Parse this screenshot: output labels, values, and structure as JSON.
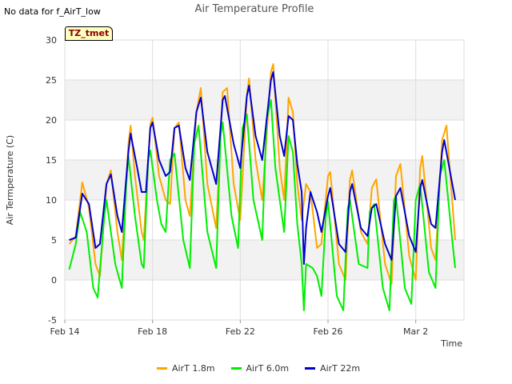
{
  "status_message": "No data for f_AirT_low",
  "badge_label": "TZ_tmet",
  "chart_data": {
    "type": "line",
    "title": "Air Temperature Profile",
    "xlabel": "Time",
    "ylabel": "Air Termperature (C)",
    "ylim": [
      -5,
      30
    ],
    "y_ticks": [
      -5,
      0,
      5,
      10,
      15,
      20,
      25,
      30
    ],
    "x_range_days": [
      0,
      18.2
    ],
    "x_ticks": [
      {
        "day": 0,
        "label": "Feb 14"
      },
      {
        "day": 4,
        "label": "Feb 18"
      },
      {
        "day": 8,
        "label": "Feb 22"
      },
      {
        "day": 12,
        "label": "Feb 26"
      },
      {
        "day": 16,
        "label": "Mar 2"
      }
    ],
    "grid": true,
    "legend_position": "bottom",
    "series": [
      {
        "name": "AirT 1.8m",
        "color": "#ffa500",
        "points": [
          [
            0.2,
            4.5
          ],
          [
            0.5,
            5.5
          ],
          [
            0.8,
            12.2
          ],
          [
            1.1,
            9.0
          ],
          [
            1.4,
            2.0
          ],
          [
            1.6,
            0.5
          ],
          [
            1.9,
            12.0
          ],
          [
            2.1,
            13.7
          ],
          [
            2.4,
            6.0
          ],
          [
            2.6,
            2.5
          ],
          [
            2.9,
            17.0
          ],
          [
            3.0,
            19.3
          ],
          [
            3.2,
            13.0
          ],
          [
            3.5,
            6.0
          ],
          [
            3.6,
            5.0
          ],
          [
            3.9,
            19.5
          ],
          [
            4.0,
            20.3
          ],
          [
            4.3,
            13.0
          ],
          [
            4.6,
            10.0
          ],
          [
            4.8,
            9.5
          ],
          [
            5.0,
            19.0
          ],
          [
            5.2,
            19.7
          ],
          [
            5.5,
            10.0
          ],
          [
            5.7,
            8.0
          ],
          [
            6.0,
            21.0
          ],
          [
            6.2,
            24.0
          ],
          [
            6.5,
            12.0
          ],
          [
            6.9,
            6.5
          ],
          [
            7.2,
            23.5
          ],
          [
            7.4,
            24.0
          ],
          [
            7.7,
            12.0
          ],
          [
            8.0,
            7.5
          ],
          [
            8.3,
            23.0
          ],
          [
            8.4,
            25.2
          ],
          [
            8.7,
            15.0
          ],
          [
            9.0,
            10.0
          ],
          [
            9.4,
            26.0
          ],
          [
            9.5,
            27.0
          ],
          [
            9.8,
            14.0
          ],
          [
            10.0,
            10.0
          ],
          [
            10.2,
            22.8
          ],
          [
            10.4,
            21.0
          ],
          [
            10.6,
            12.0
          ],
          [
            10.8,
            7.5
          ],
          [
            11.0,
            12.0
          ],
          [
            11.2,
            11.0
          ],
          [
            11.5,
            4.0
          ],
          [
            11.7,
            4.5
          ],
          [
            12.0,
            13.0
          ],
          [
            12.1,
            13.5
          ],
          [
            12.5,
            2.0
          ],
          [
            12.8,
            0.0
          ],
          [
            13.0,
            12.5
          ],
          [
            13.1,
            13.7
          ],
          [
            13.5,
            6.0
          ],
          [
            13.8,
            4.5
          ],
          [
            14.0,
            11.5
          ],
          [
            14.2,
            12.6
          ],
          [
            14.6,
            2.0
          ],
          [
            14.9,
            -0.5
          ],
          [
            15.1,
            13.0
          ],
          [
            15.3,
            14.5
          ],
          [
            15.7,
            3.0
          ],
          [
            16.0,
            0.0
          ],
          [
            16.2,
            14.0
          ],
          [
            16.3,
            15.5
          ],
          [
            16.7,
            4.0
          ],
          [
            16.9,
            2.5
          ],
          [
            17.2,
            17.5
          ],
          [
            17.4,
            19.3
          ],
          [
            17.8,
            5.0
          ]
        ]
      },
      {
        "name": "AirT 6.0m",
        "color": "#00ee00",
        "points": [
          [
            0.2,
            1.3
          ],
          [
            0.5,
            4.5
          ],
          [
            0.7,
            8.5
          ],
          [
            1.0,
            6.0
          ],
          [
            1.3,
            -1.0
          ],
          [
            1.5,
            -2.2
          ],
          [
            1.8,
            8.0
          ],
          [
            1.9,
            10.0
          ],
          [
            2.3,
            2.0
          ],
          [
            2.6,
            -1.0
          ],
          [
            2.8,
            12.0
          ],
          [
            2.9,
            15.5
          ],
          [
            3.2,
            8.0
          ],
          [
            3.5,
            2.0
          ],
          [
            3.6,
            1.5
          ],
          [
            3.8,
            15.0
          ],
          [
            3.9,
            16.2
          ],
          [
            4.2,
            10.0
          ],
          [
            4.4,
            7.0
          ],
          [
            4.6,
            6.0
          ],
          [
            4.8,
            15.0
          ],
          [
            5.0,
            15.8
          ],
          [
            5.4,
            5.0
          ],
          [
            5.7,
            1.5
          ],
          [
            5.9,
            17.0
          ],
          [
            6.1,
            19.3
          ],
          [
            6.5,
            6.0
          ],
          [
            6.9,
            1.5
          ],
          [
            7.1,
            18.0
          ],
          [
            7.2,
            19.7
          ],
          [
            7.6,
            8.0
          ],
          [
            7.9,
            4.0
          ],
          [
            8.1,
            19.0
          ],
          [
            8.3,
            20.7
          ],
          [
            8.6,
            10.0
          ],
          [
            9.0,
            5.0
          ],
          [
            9.2,
            20.0
          ],
          [
            9.4,
            22.5
          ],
          [
            9.6,
            14.0
          ],
          [
            10.0,
            6.0
          ],
          [
            10.2,
            18.0
          ],
          [
            10.4,
            16.0
          ],
          [
            10.6,
            7.0
          ],
          [
            10.8,
            2.0
          ],
          [
            10.9,
            -3.8
          ],
          [
            11.0,
            2.0
          ],
          [
            11.3,
            1.5
          ],
          [
            11.5,
            0.5
          ],
          [
            11.7,
            -2.0
          ],
          [
            11.9,
            8.0
          ],
          [
            12.0,
            9.8
          ],
          [
            12.4,
            -2.0
          ],
          [
            12.7,
            -3.8
          ],
          [
            12.9,
            9.0
          ],
          [
            13.0,
            10.0
          ],
          [
            13.4,
            2.0
          ],
          [
            13.8,
            1.5
          ],
          [
            13.9,
            8.5
          ],
          [
            14.1,
            9.5
          ],
          [
            14.5,
            -1.0
          ],
          [
            14.8,
            -3.8
          ],
          [
            15.0,
            10.0
          ],
          [
            15.1,
            10.5
          ],
          [
            15.5,
            -1.0
          ],
          [
            15.8,
            -3.0
          ],
          [
            16.0,
            10.0
          ],
          [
            16.2,
            12.0
          ],
          [
            16.6,
            1.0
          ],
          [
            16.9,
            -1.0
          ],
          [
            17.1,
            13.0
          ],
          [
            17.3,
            15.0
          ],
          [
            17.7,
            4.0
          ],
          [
            17.8,
            1.5
          ]
        ]
      },
      {
        "name": "AirT 22m",
        "color": "#0000cc",
        "points": [
          [
            0.2,
            5.0
          ],
          [
            0.5,
            5.3
          ],
          [
            0.8,
            10.8
          ],
          [
            1.1,
            9.5
          ],
          [
            1.4,
            4.0
          ],
          [
            1.6,
            4.5
          ],
          [
            1.9,
            12.0
          ],
          [
            2.1,
            13.2
          ],
          [
            2.4,
            8.0
          ],
          [
            2.6,
            6.0
          ],
          [
            2.9,
            16.0
          ],
          [
            3.0,
            18.3
          ],
          [
            3.3,
            14.0
          ],
          [
            3.5,
            11.0
          ],
          [
            3.7,
            11.0
          ],
          [
            3.9,
            19.0
          ],
          [
            4.0,
            19.7
          ],
          [
            4.3,
            15.0
          ],
          [
            4.6,
            13.0
          ],
          [
            4.8,
            13.5
          ],
          [
            5.0,
            19.0
          ],
          [
            5.2,
            19.3
          ],
          [
            5.5,
            14.0
          ],
          [
            5.7,
            12.5
          ],
          [
            6.0,
            21.0
          ],
          [
            6.2,
            22.8
          ],
          [
            6.5,
            16.0
          ],
          [
            6.9,
            12.0
          ],
          [
            7.2,
            22.5
          ],
          [
            7.3,
            23.0
          ],
          [
            7.7,
            17.0
          ],
          [
            8.0,
            14.0
          ],
          [
            8.3,
            23.0
          ],
          [
            8.4,
            24.3
          ],
          [
            8.7,
            18.0
          ],
          [
            9.0,
            15.0
          ],
          [
            9.4,
            25.0
          ],
          [
            9.5,
            26.0
          ],
          [
            9.8,
            18.0
          ],
          [
            10.0,
            15.5
          ],
          [
            10.2,
            20.5
          ],
          [
            10.4,
            20.0
          ],
          [
            10.6,
            14.5
          ],
          [
            10.8,
            11.0
          ],
          [
            10.9,
            2.0
          ],
          [
            11.0,
            6.5
          ],
          [
            11.2,
            11.0
          ],
          [
            11.5,
            8.5
          ],
          [
            11.7,
            6.0
          ],
          [
            12.0,
            10.5
          ],
          [
            12.1,
            11.5
          ],
          [
            12.5,
            4.5
          ],
          [
            12.8,
            3.5
          ],
          [
            13.0,
            11.0
          ],
          [
            13.1,
            12.0
          ],
          [
            13.5,
            6.5
          ],
          [
            13.8,
            5.5
          ],
          [
            14.0,
            9.0
          ],
          [
            14.2,
            9.5
          ],
          [
            14.6,
            4.5
          ],
          [
            14.9,
            2.5
          ],
          [
            15.1,
            10.5
          ],
          [
            15.3,
            11.5
          ],
          [
            15.7,
            5.5
          ],
          [
            16.0,
            3.5
          ],
          [
            16.2,
            11.5
          ],
          [
            16.3,
            12.5
          ],
          [
            16.7,
            7.0
          ],
          [
            16.9,
            6.5
          ],
          [
            17.2,
            16.0
          ],
          [
            17.3,
            17.5
          ],
          [
            17.8,
            10.0
          ]
        ]
      }
    ]
  }
}
